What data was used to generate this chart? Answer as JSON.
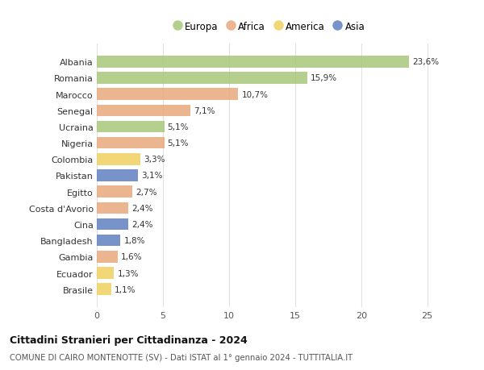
{
  "categories": [
    "Albania",
    "Romania",
    "Marocco",
    "Senegal",
    "Ucraina",
    "Nigeria",
    "Colombia",
    "Pakistan",
    "Egitto",
    "Costa d'Avorio",
    "Cina",
    "Bangladesh",
    "Gambia",
    "Ecuador",
    "Brasile"
  ],
  "values": [
    23.6,
    15.9,
    10.7,
    7.1,
    5.1,
    5.1,
    3.3,
    3.1,
    2.7,
    2.4,
    2.4,
    1.8,
    1.6,
    1.3,
    1.1
  ],
  "labels": [
    "23,6%",
    "15,9%",
    "10,7%",
    "7,1%",
    "5,1%",
    "5,1%",
    "3,3%",
    "3,1%",
    "2,7%",
    "2,4%",
    "2,4%",
    "1,8%",
    "1,6%",
    "1,3%",
    "1,1%"
  ],
  "continents": [
    "Europa",
    "Europa",
    "Africa",
    "Africa",
    "Europa",
    "Africa",
    "America",
    "Asia",
    "Africa",
    "Africa",
    "Asia",
    "Asia",
    "Africa",
    "America",
    "America"
  ],
  "continent_colors": {
    "Europa": "#a8c87a",
    "Africa": "#e8a87c",
    "America": "#f0d060",
    "Asia": "#6080c0"
  },
  "legend_items": [
    "Europa",
    "Africa",
    "America",
    "Asia"
  ],
  "legend_colors": [
    "#a8c87a",
    "#e8a87c",
    "#f0d060",
    "#6080c0"
  ],
  "title": "Cittadini Stranieri per Cittadinanza - 2024",
  "subtitle": "COMUNE DI CAIRO MONTENOTTE (SV) - Dati ISTAT al 1° gennaio 2024 - TUTTITALIA.IT",
  "xlim": [
    0,
    26
  ],
  "xticks": [
    0,
    5,
    10,
    15,
    20,
    25
  ],
  "bg_color": "#ffffff",
  "grid_color": "#e0e0e0",
  "bar_alpha": 0.85,
  "bar_height": 0.72
}
